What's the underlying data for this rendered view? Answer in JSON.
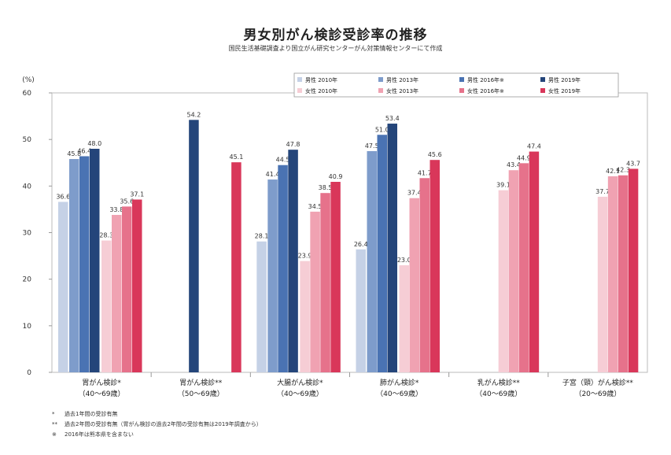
{
  "header": {
    "title": "男女別がん検診受診率の推移",
    "subtitle": "国民生活基礎調査より国立がん研究センターがん対策情報センターにて作成"
  },
  "chart_data": {
    "type": "bar",
    "ylabel": "(%)",
    "ylim": [
      0,
      60
    ],
    "yticks": [
      0,
      10,
      20,
      30,
      40,
      50,
      60
    ],
    "grid": false,
    "legend_position": "top-right",
    "categories": [
      {
        "name": "胃がん検診*",
        "age": "（40～69歳）"
      },
      {
        "name": "胃がん検診**",
        "age": "（50～69歳）"
      },
      {
        "name": "大腸がん検診*",
        "age": "（40～69歳）"
      },
      {
        "name": "肺がん検診*",
        "age": "（40～69歳）"
      },
      {
        "name": "乳がん検診**",
        "age": "（40～69歳）"
      },
      {
        "name": "子宮（頸）がん検診**",
        "age": "（20～69歳）"
      }
    ],
    "series": [
      {
        "name": "男性 2010年",
        "color": "#c5d1e6",
        "values": [
          36.6,
          null,
          28.1,
          26.4,
          null,
          null
        ]
      },
      {
        "name": "男性 2013年",
        "color": "#7e9ccb",
        "values": [
          45.8,
          null,
          41.4,
          47.5,
          null,
          null
        ]
      },
      {
        "name": "男性 2016年※",
        "color": "#4a73b3",
        "values": [
          46.4,
          null,
          44.5,
          51.0,
          null,
          null
        ]
      },
      {
        "name": "男性 2019年",
        "color": "#24457a",
        "values": [
          48.0,
          54.2,
          47.8,
          53.4,
          null,
          null
        ]
      },
      {
        "name": "女性 2010年",
        "color": "#f6cdd5",
        "values": [
          28.3,
          null,
          23.9,
          23.0,
          39.1,
          37.7
        ]
      },
      {
        "name": "女性 2013年",
        "color": "#f0a2b2",
        "values": [
          33.8,
          null,
          34.5,
          37.4,
          43.4,
          42.1
        ]
      },
      {
        "name": "女性 2016年※",
        "color": "#e6728b",
        "values": [
          35.6,
          null,
          38.5,
          41.7,
          44.9,
          42.3
        ]
      },
      {
        "name": "女性 2019年",
        "color": "#d9375a",
        "values": [
          37.1,
          45.1,
          40.9,
          45.6,
          47.4,
          43.7
        ]
      }
    ]
  },
  "notes": [
    {
      "mark": "*",
      "text": "過去1年間の受診有無"
    },
    {
      "mark": "**",
      "text": "過去2年間の受診有無（胃がん検診の過去2年間の受診有無は2019年調査から）"
    },
    {
      "mark": "※",
      "text": "2016年は熊本県を含まない"
    }
  ]
}
